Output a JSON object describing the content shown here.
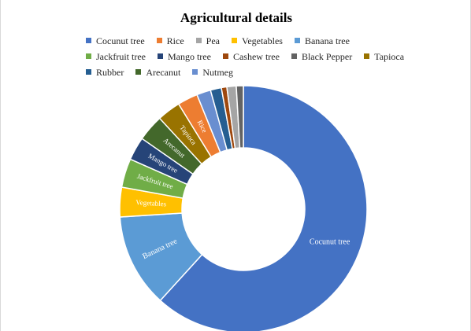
{
  "chart_data": {
    "type": "pie",
    "title": "Agricultural details",
    "legend_position": "top",
    "categories": [
      "Cocunut tree",
      "Rice",
      "Pea",
      "Vegetables",
      "Banana tree",
      "Jackfruit tree",
      "Mango tree",
      "Cashew tree",
      "Black Pepper",
      "Tapioca",
      "Rubber",
      "Arecanut",
      "Nutmeg"
    ],
    "slices": [
      {
        "label": "Cocunut tree",
        "value": 60.5,
        "color": "#4472c4",
        "show_label": true
      },
      {
        "label": "Banana tree",
        "value": 12.0,
        "color": "#5b9bd5",
        "show_label": true
      },
      {
        "label": "Vegetables",
        "value": 3.8,
        "color": "#ffc000",
        "show_label": true
      },
      {
        "label": "Jackfruit tree",
        "value": 3.7,
        "color": "#70ad47",
        "show_label": true
      },
      {
        "label": "Mango tree",
        "value": 3.0,
        "color": "#264478",
        "show_label": true
      },
      {
        "label": "Arecanut",
        "value": 3.4,
        "color": "#43682b",
        "show_label": true
      },
      {
        "label": "Tapioca",
        "value": 3.0,
        "color": "#997300",
        "show_label": true
      },
      {
        "label": "Rice",
        "value": 2.6,
        "color": "#ed7d31",
        "show_label": true
      },
      {
        "label": "Nutmeg",
        "value": 1.8,
        "color": "#698ed0",
        "show_label": false
      },
      {
        "label": "Rubber",
        "value": 1.4,
        "color": "#255e91",
        "show_label": false
      },
      {
        "label": "Cashew tree",
        "value": 0.7,
        "color": "#9e480e",
        "show_label": false
      },
      {
        "label": "Pea",
        "value": 1.2,
        "color": "#a5a5a5",
        "show_label": false
      },
      {
        "label": "Black Pepper",
        "value": 0.9,
        "color": "#636363",
        "show_label": false
      }
    ]
  },
  "legend": {
    "rows": [
      [
        {
          "label": "Cocunut tree",
          "color": "#4472c4"
        },
        {
          "label": "Rice",
          "color": "#ed7d31"
        },
        {
          "label": "Pea",
          "color": "#a5a5a5"
        },
        {
          "label": "Vegetables",
          "color": "#ffc000"
        },
        {
          "label": "Banana tree",
          "color": "#5b9bd5"
        }
      ],
      [
        {
          "label": "Jackfruit tree",
          "color": "#70ad47"
        },
        {
          "label": "Mango tree",
          "color": "#264478"
        },
        {
          "label": "Cashew tree",
          "color": "#9e480e"
        },
        {
          "label": "Black Pepper",
          "color": "#636363"
        },
        {
          "label": "Tapioca",
          "color": "#997300"
        }
      ],
      [
        {
          "label": "Rubber",
          "color": "#255e91"
        },
        {
          "label": "Arecanut",
          "color": "#43682b"
        },
        {
          "label": "Nutmeg",
          "color": "#698ed0"
        }
      ]
    ]
  }
}
